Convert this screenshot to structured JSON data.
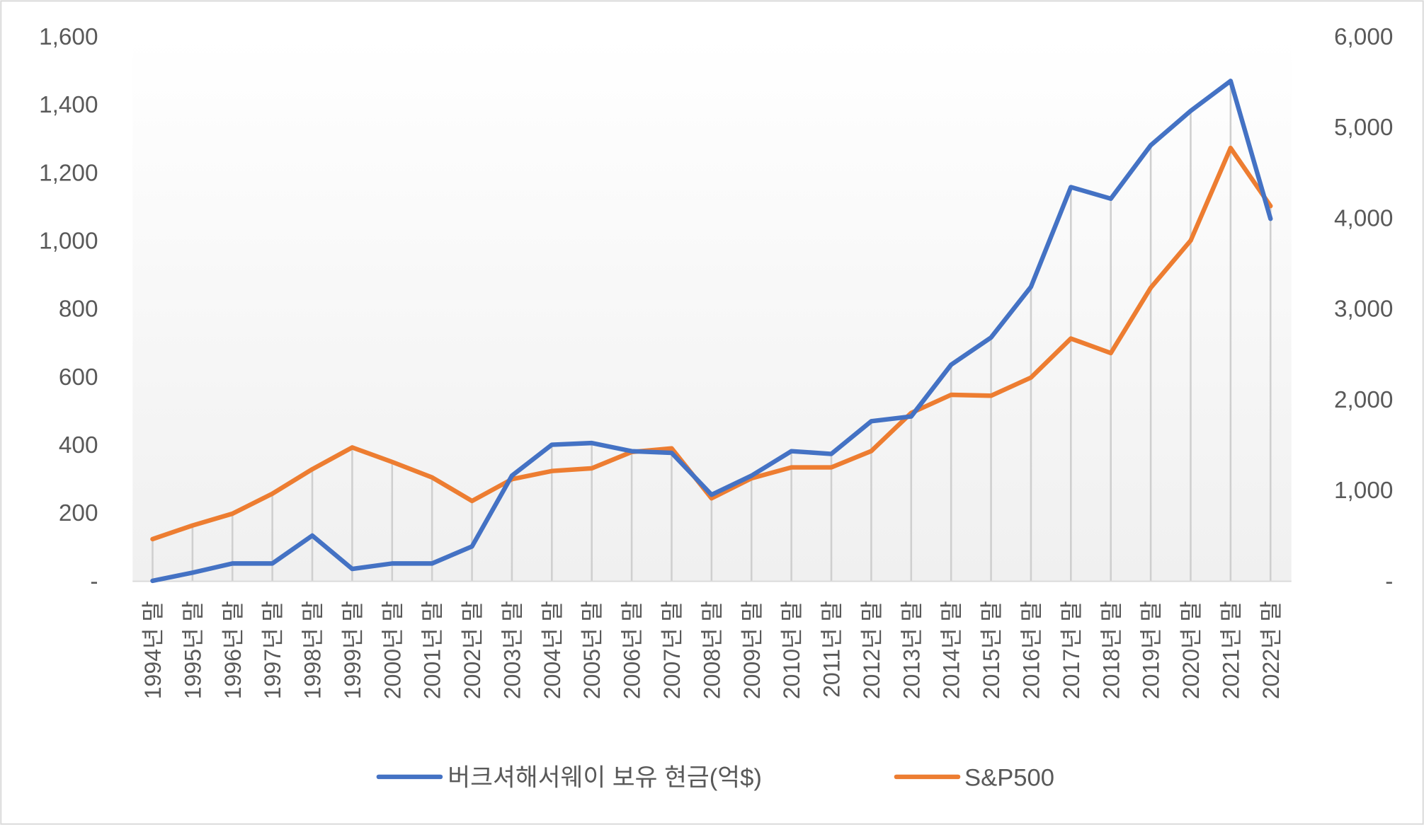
{
  "chart_data": {
    "type": "line",
    "title": "",
    "categories": [
      "1994년 말",
      "1995년 말",
      "1996년 말",
      "1997년 말",
      "1998년 말",
      "1999년 말",
      "2000년 말",
      "2001년 말",
      "2002년 말",
      "2003년 말",
      "2004년 말",
      "2005년 말",
      "2006년 말",
      "2007년 말",
      "2008년 말",
      "2009년 말",
      "2010년 말",
      "2011년 말",
      "2012년 말",
      "2013년 말",
      "2014년 말",
      "2015년 말",
      "2016년 말",
      "2017년 말",
      "2018년 말",
      "2019년 말",
      "2020년 말",
      "2021년 말",
      "2022년 말"
    ],
    "series": [
      {
        "name": "버크셔해서웨이 보유 현금(억$)",
        "axis": "left",
        "color": "#4472C4",
        "values": [
          0,
          24,
          51,
          51,
          133,
          35,
          51,
          51,
          101,
          309,
          400,
          405,
          381,
          376,
          253,
          309,
          381,
          373,
          469,
          483,
          635,
          715,
          864,
          1157,
          1123,
          1280,
          1381,
          1469,
          1064
        ]
      },
      {
        "name": "S&P500",
        "axis": "right",
        "color": "#ED7D31",
        "values": [
          460,
          610,
          740,
          960,
          1230,
          1470,
          1310,
          1140,
          880,
          1120,
          1210,
          1240,
          1420,
          1460,
          910,
          1130,
          1250,
          1250,
          1430,
          1850,
          2050,
          2040,
          2240,
          2670,
          2510,
          3230,
          3750,
          4770,
          4130
        ]
      }
    ],
    "y_left": {
      "ylim": [
        0,
        1600
      ],
      "ticks": [
        "-",
        "200",
        "400",
        "600",
        "800",
        "1,000",
        "1,200",
        "1,400",
        "1,600"
      ]
    },
    "y_right": {
      "ylim": [
        0,
        6000
      ],
      "ticks": [
        "-",
        "1,000",
        "2,000",
        "3,000",
        "4,000",
        "5,000",
        "6,000"
      ]
    },
    "xlabel": "",
    "ylabel": "",
    "grid": false,
    "drop_lines": true,
    "legend": "bottom"
  }
}
